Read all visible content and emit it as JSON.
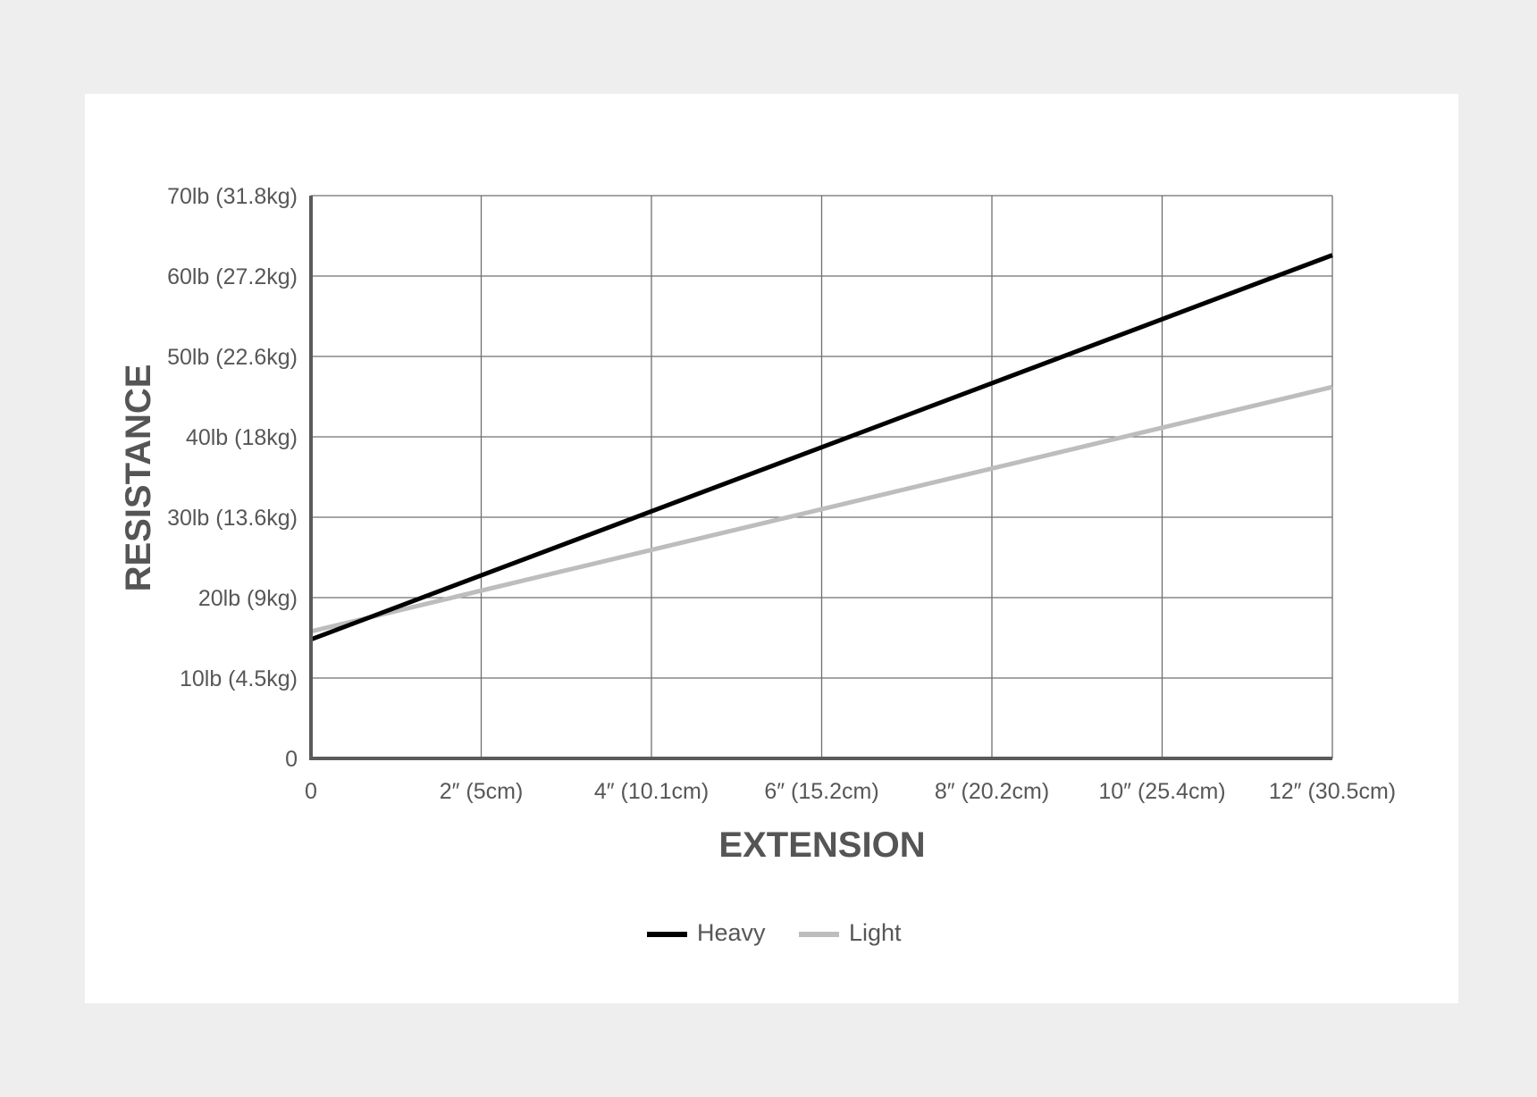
{
  "colors": {
    "page_bg": "#eeeeee",
    "card_bg": "#ffffff",
    "grid": "#6f6f6f",
    "axis": "#5a5a5a",
    "text": "#575757"
  },
  "chart_data": {
    "type": "line",
    "title": "",
    "xlabel": "EXTENSION",
    "ylabel": "RESISTANCE",
    "xlim": [
      0,
      12
    ],
    "ylim": [
      0,
      70
    ],
    "grid": true,
    "legend_position": "bottom-center",
    "x_ticks": [
      {
        "value": 0,
        "label": "0"
      },
      {
        "value": 2,
        "label": "2″ (5cm)"
      },
      {
        "value": 4,
        "label": "4″ (10.1cm)"
      },
      {
        "value": 6,
        "label": "6″ (15.2cm)"
      },
      {
        "value": 8,
        "label": "8″ (20.2cm)"
      },
      {
        "value": 10,
        "label": "10″ (25.4cm)"
      },
      {
        "value": 12,
        "label": "12″ (30.5cm)"
      }
    ],
    "y_ticks": [
      {
        "value": 0,
        "label": "0"
      },
      {
        "value": 10,
        "label": "10lb (4.5kg)"
      },
      {
        "value": 20,
        "label": "20lb (9kg)"
      },
      {
        "value": 30,
        "label": "30lb (13.6kg)"
      },
      {
        "value": 40,
        "label": "40lb (18kg)"
      },
      {
        "value": 50,
        "label": "50lb (22.6kg)"
      },
      {
        "value": 60,
        "label": "60lb (27.2kg)"
      },
      {
        "value": 70,
        "label": "70lb (31.8kg)"
      }
    ],
    "series": [
      {
        "name": "Heavy",
        "color": "#000000",
        "x": [
          0,
          12
        ],
        "y": [
          14.8,
          62.6
        ]
      },
      {
        "name": "Light",
        "color": "#bdbdbd",
        "x": [
          0,
          12
        ],
        "y": [
          15.8,
          46.2
        ]
      }
    ]
  }
}
